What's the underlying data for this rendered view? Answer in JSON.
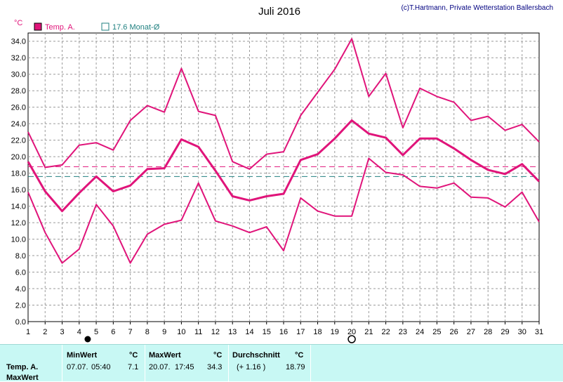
{
  "header": {
    "copyright": "(c)T.Hartmann, Private Wetterstation Ballersbach"
  },
  "chart_data": {
    "type": "line",
    "title": "Juli 2016",
    "ylabel": "°C",
    "ylim": [
      0,
      35
    ],
    "yticks": [
      "0.0",
      "2.0",
      "4.0",
      "6.0",
      "8.0",
      "10.0",
      "12.0",
      "14.0",
      "16.0",
      "18.0",
      "20.0",
      "22.0",
      "24.0",
      "26.0",
      "28.0",
      "30.0",
      "32.0",
      "34.0"
    ],
    "x": [
      1,
      2,
      3,
      4,
      5,
      6,
      7,
      8,
      9,
      10,
      11,
      12,
      13,
      14,
      15,
      16,
      17,
      18,
      19,
      20,
      21,
      22,
      23,
      24,
      25,
      26,
      27,
      28,
      29,
      30,
      31
    ],
    "legend": [
      {
        "label": "Temp. A.",
        "color": "#e0147a"
      },
      {
        "label": "17.6 Monat-Ø",
        "color": "#208080"
      }
    ],
    "series": [
      {
        "name": "Max",
        "values": [
          23.0,
          18.7,
          19.0,
          21.4,
          21.7,
          20.8,
          24.4,
          26.2,
          25.4,
          30.7,
          25.5,
          25.0,
          19.4,
          18.5,
          20.3,
          20.6,
          25.0,
          27.8,
          30.6,
          34.3,
          27.3,
          30.1,
          23.5,
          28.3,
          27.3,
          26.6,
          24.4,
          24.9,
          23.2,
          23.9,
          21.8
        ],
        "width": 2
      },
      {
        "name": "Mittel",
        "values": [
          19.4,
          15.8,
          13.4,
          15.6,
          17.6,
          15.8,
          16.5,
          18.5,
          18.6,
          22.1,
          21.2,
          18.3,
          15.2,
          14.7,
          15.2,
          15.5,
          19.6,
          20.3,
          22.2,
          24.4,
          22.8,
          22.3,
          20.2,
          22.2,
          22.2,
          21.0,
          19.6,
          18.4,
          17.9,
          19.1,
          17.0
        ],
        "width": 3
      },
      {
        "name": "Min",
        "values": [
          15.7,
          10.8,
          7.1,
          8.8,
          14.2,
          11.6,
          7.1,
          10.6,
          11.8,
          12.3,
          16.8,
          12.2,
          11.6,
          10.8,
          11.5,
          8.6,
          15.0,
          13.4,
          12.8,
          12.8,
          19.8,
          18.1,
          17.8,
          16.4,
          16.2,
          16.8,
          15.1,
          15.0,
          13.9,
          15.7,
          12.1
        ],
        "width": 2
      }
    ],
    "reference_lines": [
      {
        "value": 18.79,
        "color": "#e0147a"
      },
      {
        "value": 17.6,
        "color": "#208080"
      }
    ],
    "markers": [
      {
        "day": 4.5,
        "symbol": "new-moon"
      },
      {
        "day": 20,
        "symbol": "full-moon"
      }
    ],
    "grid": true
  },
  "footer": {
    "row_label": "Temp. A.",
    "row_label2": "MaxWert",
    "min": {
      "header": "MinWert",
      "unit": "°C",
      "date": "07.07.",
      "time": "05:40",
      "value": "7.1"
    },
    "max": {
      "header": "MaxWert",
      "unit": "°C",
      "date": "20.07.",
      "time": "17:45",
      "value": "34.3"
    },
    "avg": {
      "header": "Durchschnitt",
      "unit": "°C",
      "delta": "(+ 1.16 )",
      "value": "18.79"
    }
  }
}
